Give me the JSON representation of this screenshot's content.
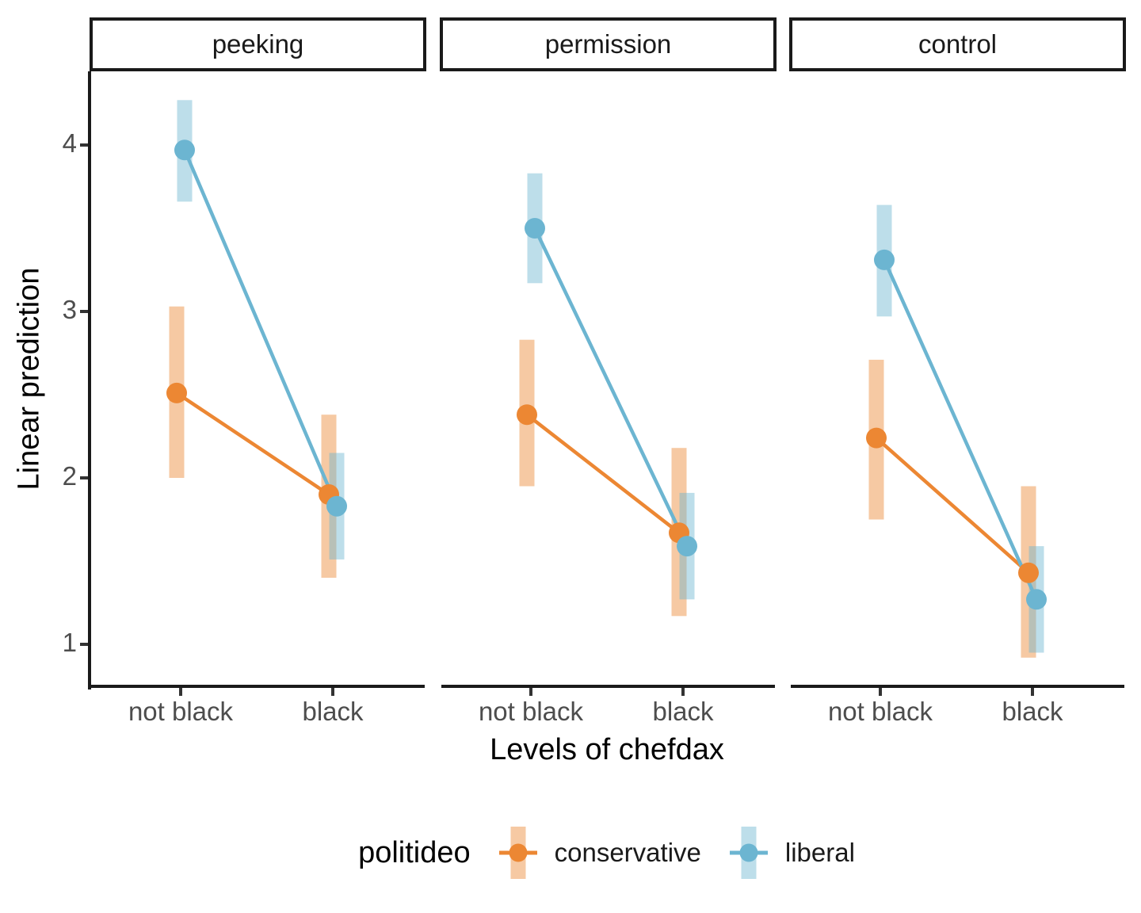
{
  "chart_data": {
    "type": "pointrange",
    "title": "",
    "xlabel": "Levels of chefdax",
    "ylabel": "Linear prediction",
    "legend_title": "politideo",
    "legend_position": "bottom",
    "grid": false,
    "x_categories": [
      "not black",
      "black"
    ],
    "yticks": [
      4,
      3,
      2,
      1
    ],
    "ylim": [
      0.75,
      4.45
    ],
    "colors": {
      "axis_line": "#1a1a1a",
      "tick_text": "#4D4D4D",
      "strip_border": "#1a1a1a",
      "background": "#ffffff"
    },
    "series_meta": [
      {
        "name": "conservative",
        "color": "#EC8733",
        "bar_alpha": 0.45
      },
      {
        "name": "liberal",
        "color": "#6CB5D1",
        "bar_alpha": 0.45
      }
    ],
    "facets": [
      {
        "label": "peeking",
        "series": [
          {
            "name": "conservative",
            "means": [
              2.51,
              1.9
            ],
            "ci_low": [
              2.0,
              1.4
            ],
            "ci_high": [
              3.03,
              2.38
            ]
          },
          {
            "name": "liberal",
            "means": [
              3.97,
              1.83
            ],
            "ci_low": [
              3.66,
              1.51
            ],
            "ci_high": [
              4.27,
              2.15
            ]
          }
        ]
      },
      {
        "label": "permission",
        "series": [
          {
            "name": "conservative",
            "means": [
              2.38,
              1.67
            ],
            "ci_low": [
              1.95,
              1.17
            ],
            "ci_high": [
              2.83,
              2.18
            ]
          },
          {
            "name": "liberal",
            "means": [
              3.5,
              1.59
            ],
            "ci_low": [
              3.17,
              1.27
            ],
            "ci_high": [
              3.83,
              1.91
            ]
          }
        ]
      },
      {
        "label": "control",
        "series": [
          {
            "name": "conservative",
            "means": [
              2.24,
              1.43
            ],
            "ci_low": [
              1.75,
              0.92
            ],
            "ci_high": [
              2.71,
              1.95
            ]
          },
          {
            "name": "liberal",
            "means": [
              3.31,
              1.27
            ],
            "ci_low": [
              2.97,
              0.95
            ],
            "ci_high": [
              3.64,
              1.59
            ]
          }
        ]
      }
    ]
  }
}
